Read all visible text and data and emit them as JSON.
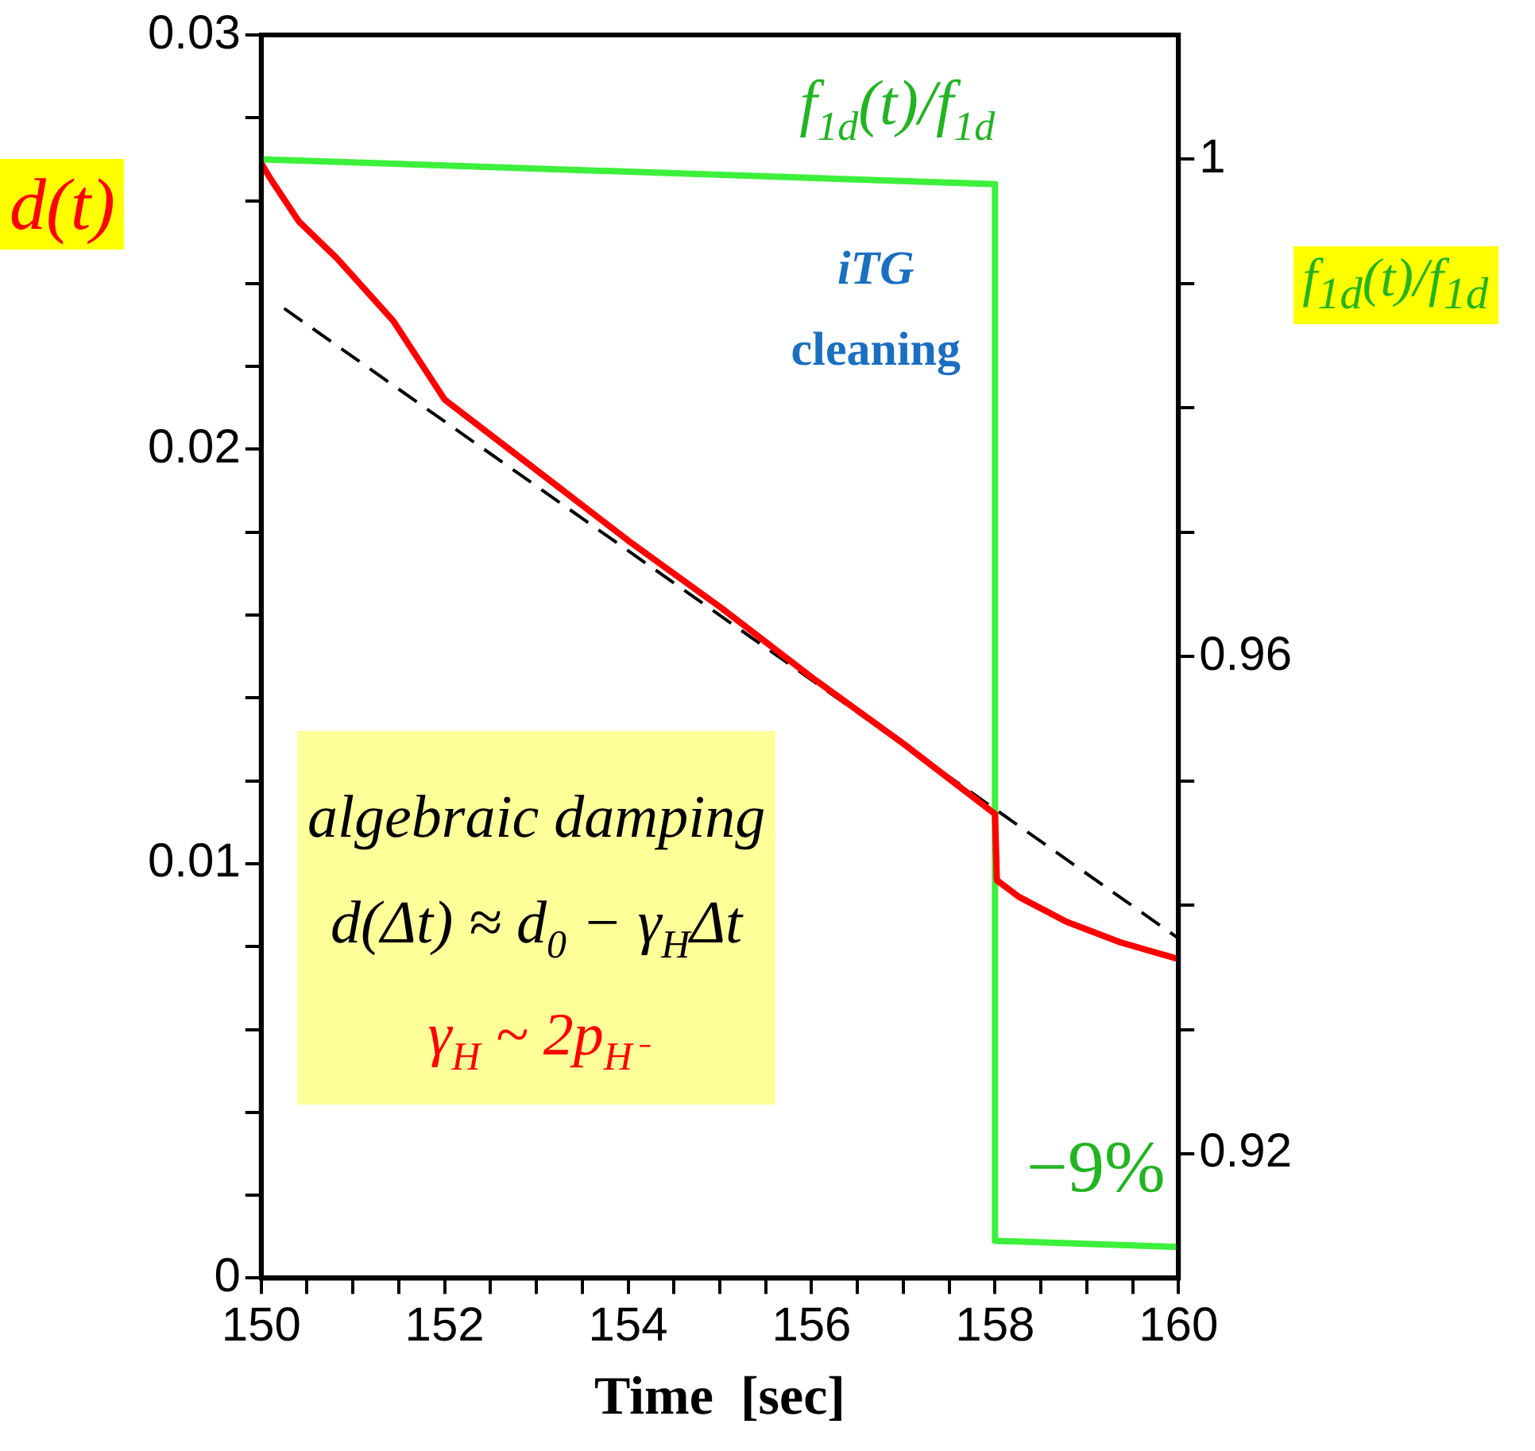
{
  "chart_data": {
    "type": "line",
    "xlabel": "Time  [sec]",
    "ylabel": "d(t)",
    "y2label": "f$_{1d}$(t)/f$_{1d}$",
    "xlim": [
      150,
      160
    ],
    "xticks": [
      150,
      {
        "value": 150.5,
        "label": null
      },
      {
        "value": 151,
        "label": null
      },
      {
        "value": 151.5,
        "label": null
      },
      152,
      {
        "value": 152.5,
        "label": null
      },
      {
        "value": 153,
        "label": null
      },
      {
        "value": 153.5,
        "label": null
      },
      154,
      {
        "value": 154.5,
        "label": null
      },
      {
        "value": 155,
        "label": null
      },
      {
        "value": 155.5,
        "label": null
      },
      156,
      {
        "value": 156.5,
        "label": null
      },
      {
        "value": 157,
        "label": null
      },
      {
        "value": 157.5,
        "label": null
      },
      158,
      {
        "value": 158.5,
        "label": null
      },
      {
        "value": 159,
        "label": null
      },
      {
        "value": 159.5,
        "label": null
      },
      160
    ],
    "ylim": [
      0,
      0.03
    ],
    "yticks": [
      0,
      {
        "value": 0.002,
        "label": null
      },
      {
        "value": 0.004,
        "label": null
      },
      {
        "value": 0.006,
        "label": null
      },
      {
        "value": 0.008,
        "label": null
      },
      0.01,
      {
        "value": 0.012,
        "label": null
      },
      {
        "value": 0.014,
        "label": null
      },
      {
        "value": 0.016,
        "label": null
      },
      {
        "value": 0.018,
        "label": null
      },
      0.02,
      {
        "value": 0.022,
        "label": null
      },
      {
        "value": 0.024,
        "label": null
      },
      {
        "value": 0.026,
        "label": null
      },
      {
        "value": 0.028,
        "label": null
      },
      0.03
    ],
    "y2lim": [
      0.91,
      1.01
    ],
    "y2ticks": [
      0.92,
      {
        "value": 0.93,
        "label": null
      },
      {
        "value": 0.94,
        "label": null
      },
      {
        "value": 0.95,
        "label": null
      },
      0.96,
      {
        "value": 0.97,
        "label": null
      },
      {
        "value": 0.98,
        "label": null
      },
      {
        "value": 0.99,
        "label": null
      },
      1
    ],
    "series": [
      {
        "color": "#ff0000",
        "x": [
          150,
          150.11,
          150.41,
          150.83,
          151.44,
          152,
          153,
          154,
          155,
          156,
          157,
          158,
          158.02,
          158.26,
          158.78,
          159.37,
          160
        ],
        "values": [
          0.0269,
          0.0265,
          0.0255,
          0.0246,
          0.0231,
          0.0212,
          0.0195,
          0.0178,
          0.0162,
          0.0145,
          0.0129,
          0.0112,
          0.0096,
          0.0092,
          0.0086,
          0.0081,
          0.0077
        ]
      },
      {
        "color": "#000000",
        "line_style": "dashed",
        "x": [
          150.25,
          160
        ],
        "values": [
          0.0234,
          0.0082
        ]
      },
      {
        "name": "f$_{1d}$(t)/f$_{1d}$",
        "color": "#3cf03c",
        "axis": "y2",
        "x": [
          150,
          158,
          158,
          160
        ],
        "values": [
          1.0,
          0.998,
          0.913,
          0.9125
        ]
      }
    ],
    "annotations": [
      "iTG",
      "cleaning",
      "algebraic damping",
      "d(Δt) ≈ d$_{0}$ − γ$_{H}$Δt",
      "γ$_{H}$ ~ 2p$_{H⁻}$",
      "−9%"
    ],
    "grid": false,
    "legend": false,
    "marker": "none",
    "line_style": "solid"
  }
}
